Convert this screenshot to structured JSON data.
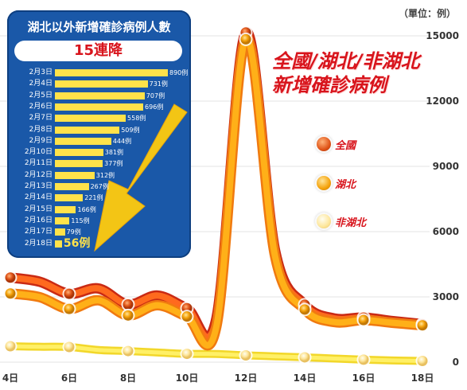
{
  "unit_label": "（單位：例）",
  "title_lines": [
    "全國/湖北/非湖北",
    "新增確診病例"
  ],
  "legend": [
    {
      "label": "全國",
      "color": "#e05418"
    },
    {
      "label": "湖北",
      "color": "#f5a20a"
    },
    {
      "label": "非湖北",
      "color": "#fde69a"
    }
  ],
  "inset": {
    "title": "湖北以外新增確診病例人數",
    "banner": "15連降",
    "rows": [
      {
        "date": "2月3日",
        "value": 890,
        "label": "890例"
      },
      {
        "date": "2月4日",
        "value": 731,
        "label": "731例"
      },
      {
        "date": "2月5日",
        "value": 707,
        "label": "707例"
      },
      {
        "date": "2月6日",
        "value": 696,
        "label": "696例"
      },
      {
        "date": "2月7日",
        "value": 558,
        "label": "558例"
      },
      {
        "date": "2月8日",
        "value": 509,
        "label": "509例"
      },
      {
        "date": "2月9日",
        "value": 444,
        "label": "444例"
      },
      {
        "date": "2月10日",
        "value": 381,
        "label": "381例"
      },
      {
        "date": "2月11日",
        "value": 377,
        "label": "377例"
      },
      {
        "date": "2月12日",
        "value": 312,
        "label": "312例"
      },
      {
        "date": "2月13日",
        "value": 267,
        "label": "267例"
      },
      {
        "date": "2月14日",
        "value": 221,
        "label": "221例"
      },
      {
        "date": "2月15日",
        "value": 166,
        "label": "166例"
      },
      {
        "date": "2月16日",
        "value": 115,
        "label": "115例"
      },
      {
        "date": "2月17日",
        "value": 79,
        "label": "79例"
      },
      {
        "date": "2月18日",
        "value": 56,
        "label": "56例"
      }
    ]
  },
  "chart_data": {
    "type": "line",
    "x": [
      4,
      5,
      6,
      7,
      8,
      9,
      10,
      11,
      12,
      13,
      14,
      15,
      16,
      17,
      18
    ],
    "xticks": [
      "4日",
      "6日",
      "8日",
      "10日",
      "12日",
      "14日",
      "16日",
      "18日"
    ],
    "yticks": [
      "0",
      "3000",
      "6000",
      "9000",
      "12000",
      "15000"
    ],
    "ylim": [
      0,
      16000
    ],
    "grid": true,
    "series": [
      {
        "name": "全國",
        "color": "#e05418",
        "values": [
          3887,
          3694,
          3143,
          3385,
          2652,
          3062,
          2478,
          2015,
          15152,
          5090,
          2641,
          2009,
          2048,
          1886,
          1749
        ]
      },
      {
        "name": "湖北",
        "color": "#f5a20a",
        "values": [
          3156,
          2987,
          2447,
          2841,
          2147,
          2618,
          2097,
          1638,
          14840,
          4823,
          2420,
          1843,
          1933,
          1807,
          1693
        ]
      },
      {
        "name": "非湖北",
        "color": "#fde69a",
        "values": [
          731,
          707,
          696,
          558,
          509,
          444,
          381,
          377,
          312,
          267,
          221,
          166,
          115,
          79,
          56
        ]
      }
    ],
    "markers": [
      {
        "series": 0,
        "x": [
          4,
          6,
          8,
          10,
          12,
          14,
          16,
          18
        ]
      },
      {
        "series": 1,
        "x": [
          4,
          6,
          8,
          10,
          12,
          14,
          16,
          18
        ]
      },
      {
        "series": 2,
        "x": [
          4,
          6,
          8,
          10,
          12,
          14,
          16,
          18
        ]
      }
    ]
  }
}
